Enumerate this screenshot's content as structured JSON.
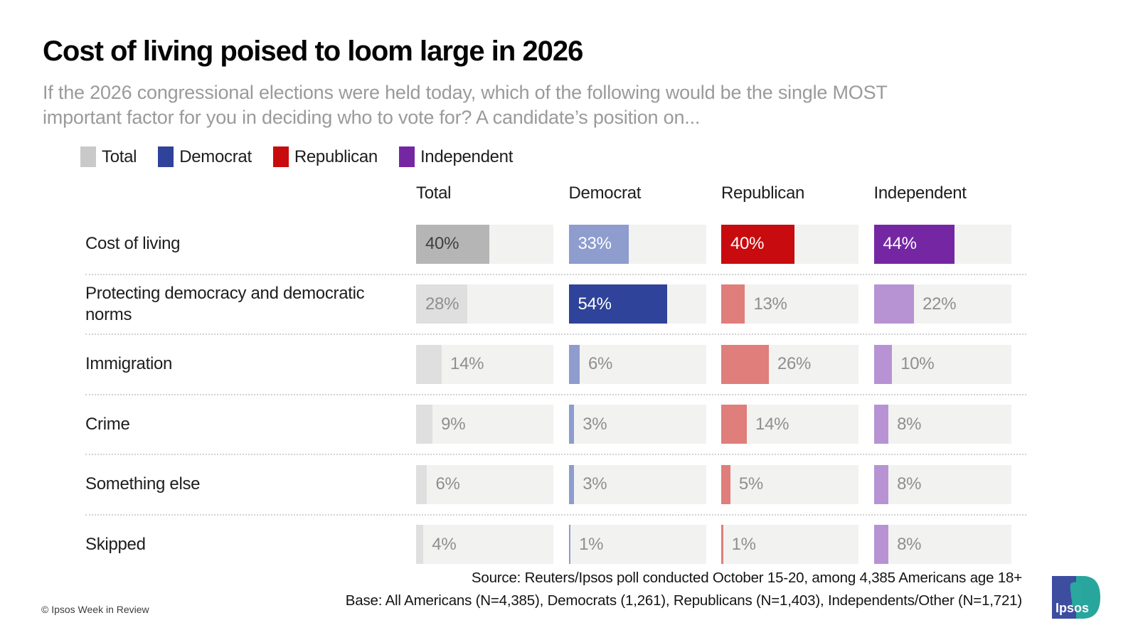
{
  "title": "Cost of living poised to loom large in 2026",
  "subtitle_line1": "If the 2026 congressional elections were held today, which of the following would be the single MOST",
  "subtitle_line2": "important factor for you in deciding who to vote for? A candidate’s position on...",
  "legend": [
    {
      "label": "Total",
      "color": "#c9c9c9"
    },
    {
      "label": "Democrat",
      "color": "#2e4399"
    },
    {
      "label": "Republican",
      "color": "#c80b0e"
    },
    {
      "label": "Independent",
      "color": "#7527a3"
    }
  ],
  "palette": {
    "total": {
      "dark": "#b5b5b5",
      "light": "#dfdfdf"
    },
    "democrat": {
      "dark": "#2e4399",
      "light": "#8e9cce"
    },
    "republican": {
      "dark": "#c80b0e",
      "light": "#df7e7a"
    },
    "independent": {
      "dark": "#7527a3",
      "light": "#b793d3"
    },
    "track": "#f2f2f1",
    "outside_label": "#8f8f8f",
    "inside_label_on_color": "#ffffff",
    "inside_label_on_dark_gray": "#3f3f3f",
    "inside_label_on_light_gray": "#8f8f8f"
  },
  "chart_data": {
    "type": "bar",
    "title": "Cost of living poised to loom large in 2026",
    "xlabel": "",
    "ylabel": "",
    "value_suffix": "%",
    "scale_max": 75,
    "xlim": [
      0,
      75
    ],
    "grid": false,
    "legend_position": "top",
    "categories": [
      "Cost of living",
      "Protecting democracy and democratic norms",
      "Immigration",
      "Crime",
      "Something else",
      "Skipped"
    ],
    "series": [
      {
        "key": "total",
        "name": "Total",
        "values": [
          40,
          28,
          14,
          9,
          6,
          4
        ],
        "highlight_row": 0
      },
      {
        "key": "democrat",
        "name": "Democrat",
        "values": [
          33,
          54,
          6,
          3,
          3,
          1
        ],
        "highlight_row": 1
      },
      {
        "key": "republican",
        "name": "Republican",
        "values": [
          40,
          13,
          26,
          14,
          5,
          1
        ],
        "highlight_row": 0
      },
      {
        "key": "independent",
        "name": "Independent",
        "values": [
          44,
          22,
          10,
          8,
          8,
          8
        ],
        "highlight_row": 0
      }
    ]
  },
  "footer": {
    "source": "Source: Reuters/Ipsos poll conducted October 15-20, among 4,385 Americans age 18+",
    "base": "Base:  All Americans (N=4,385), Democrats (1,261), Republicans (N=1,403), Independents/Other (N=1,721)",
    "copyright": "© Ipsos Week in Review",
    "logo_text": "Ipsos"
  }
}
